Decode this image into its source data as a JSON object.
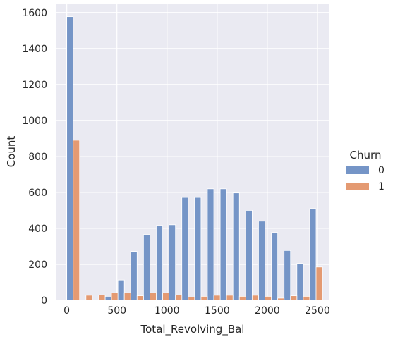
{
  "chart_data": {
    "type": "bar",
    "xlabel": "Total_Revolving_Bal",
    "ylabel": "Count",
    "xlim": [
      -110,
      2620
    ],
    "ylim": [
      0,
      1650
    ],
    "xticks": [
      0,
      500,
      1000,
      1500,
      2000,
      2500
    ],
    "yticks": [
      0,
      200,
      400,
      600,
      800,
      1000,
      1200,
      1400,
      1600
    ],
    "grid": true,
    "legend_position": "right",
    "legend_title": "Churn",
    "bin_width": 127.5,
    "series": [
      {
        "name": "0",
        "color": "#7595c7",
        "bins": [
          0,
          127.5,
          255,
          382.5,
          510,
          637.5,
          765,
          892.5,
          1020,
          1147.5,
          1275,
          1402.5,
          1530,
          1657.5,
          1785,
          1912.5,
          2040,
          2167.5,
          2295,
          2422.5
        ],
        "values": [
          1577,
          0,
          0,
          22,
          113,
          272,
          365,
          416,
          420,
          572,
          572,
          620,
          620,
          597,
          500,
          440,
          377,
          277,
          205,
          510
        ]
      },
      {
        "name": "1",
        "color": "#e49a72",
        "bins": [
          0,
          127.5,
          255,
          382.5,
          510,
          637.5,
          765,
          892.5,
          1020,
          1147.5,
          1275,
          1402.5,
          1530,
          1657.5,
          1785,
          1912.5,
          2040,
          2167.5,
          2295,
          2422.5
        ],
        "values": [
          890,
          28,
          30,
          42,
          42,
          25,
          42,
          42,
          30,
          18,
          22,
          28,
          28,
          22,
          28,
          22,
          12,
          25,
          22,
          185
        ]
      }
    ]
  }
}
